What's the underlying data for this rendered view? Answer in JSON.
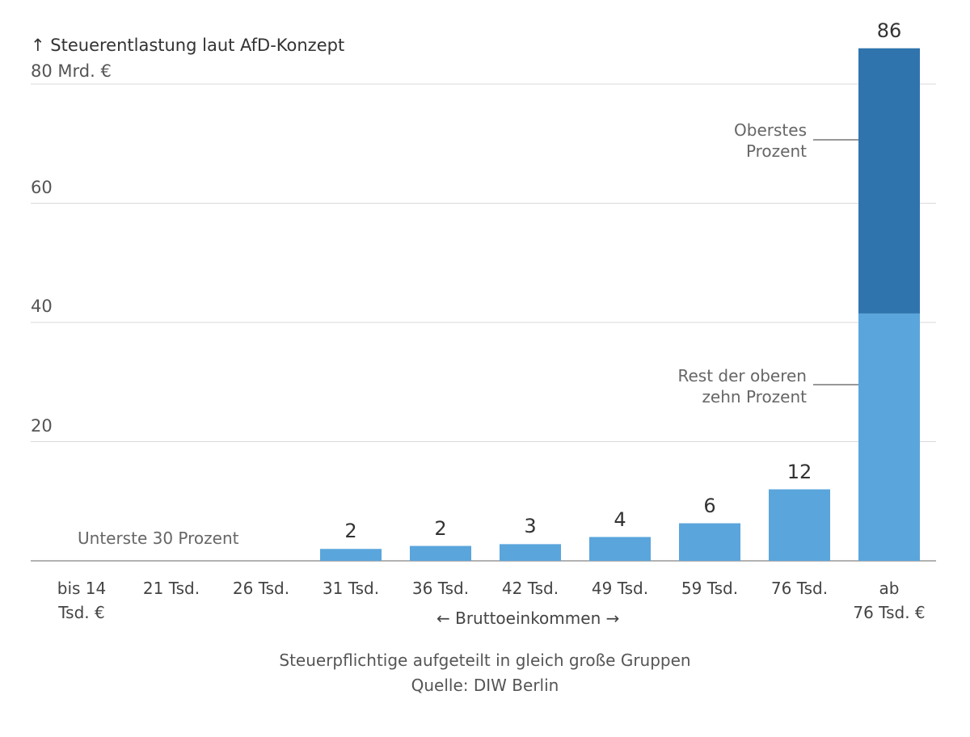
{
  "chart_data": {
    "type": "bar",
    "stacked": true,
    "title": "↑ Steuerentlastung laut AfD-Konzept",
    "ylabel": "",
    "xlabel": "← Bruttoeinkommen →",
    "ylim": [
      0,
      86
    ],
    "yticks": [
      20,
      40,
      60
    ],
    "ytick_top_label": "80 Mrd. €",
    "categories": [
      "bis 14\nTsd. €",
      "21 Tsd.",
      "26 Tsd.",
      "31 Tsd.",
      "36 Tsd.",
      "42 Tsd.",
      "49 Tsd.",
      "59 Tsd.",
      "76 Tsd.",
      "ab\n76 Tsd. €"
    ],
    "series": [
      {
        "values": [
          0,
          0,
          0,
          2,
          2.5,
          2.8,
          4,
          6.3,
          12,
          41.5
        ],
        "color": "#5aa5dc"
      },
      {
        "values": [
          0,
          0,
          0,
          0,
          0,
          0,
          0,
          0,
          0,
          44.5
        ],
        "color": "#2f74ad"
      }
    ],
    "value_labels": [
      "",
      "",
      "",
      "2",
      "2",
      "3",
      "4",
      "6",
      "12",
      "86"
    ],
    "grid": true
  },
  "annotations": {
    "top_percent": "Oberstes\nProzent",
    "rest_top_ten": "Rest der oberen\nzehn Prozent",
    "bottom_30": "Unterste 30 Prozent"
  },
  "footer": {
    "note": "Steuerpflichtige aufgeteilt in gleich große Gruppen",
    "source": "Quelle: DIW Berlin"
  },
  "colors": {
    "bar_light": "#5aa5dc",
    "bar_dark": "#2f74ad",
    "grid": "#d9d9d9",
    "axis": "#999999"
  }
}
